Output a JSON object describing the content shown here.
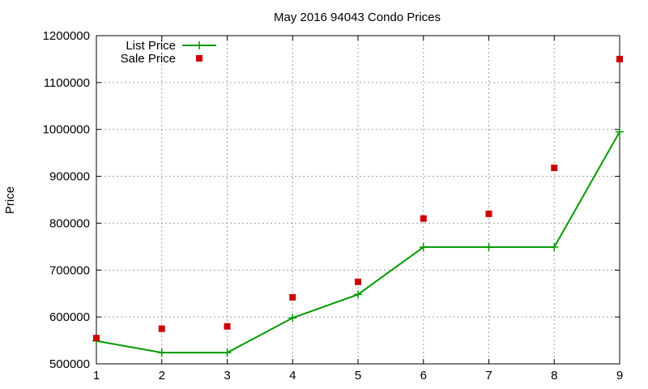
{
  "chart_data": {
    "type": "line",
    "title": "May 2016 94043 Condo Prices",
    "xlabel": "",
    "ylabel": "Price",
    "x": [
      1,
      2,
      3,
      4,
      5,
      6,
      7,
      8,
      9
    ],
    "xlim": [
      1,
      9
    ],
    "ylim": [
      500000,
      1200000
    ],
    "x_ticks": [
      "1",
      "2",
      "3",
      "4",
      "5",
      "6",
      "7",
      "8",
      "9"
    ],
    "y_ticks": [
      "500000",
      "600000",
      "700000",
      "800000",
      "900000",
      "1000000",
      "1100000",
      "1200000"
    ],
    "grid": true,
    "legend_position": "top-left",
    "series": [
      {
        "name": "List Price",
        "style": "line-with-plus-markers",
        "color": "#009900",
        "values": [
          549000,
          524000,
          524000,
          598000,
          648000,
          749000,
          749000,
          749000,
          995000
        ]
      },
      {
        "name": "Sale Price",
        "style": "square-markers",
        "color": "#cc0000",
        "values": [
          555000,
          575000,
          580000,
          642000,
          675000,
          810000,
          820000,
          918000,
          1150000
        ]
      }
    ]
  }
}
